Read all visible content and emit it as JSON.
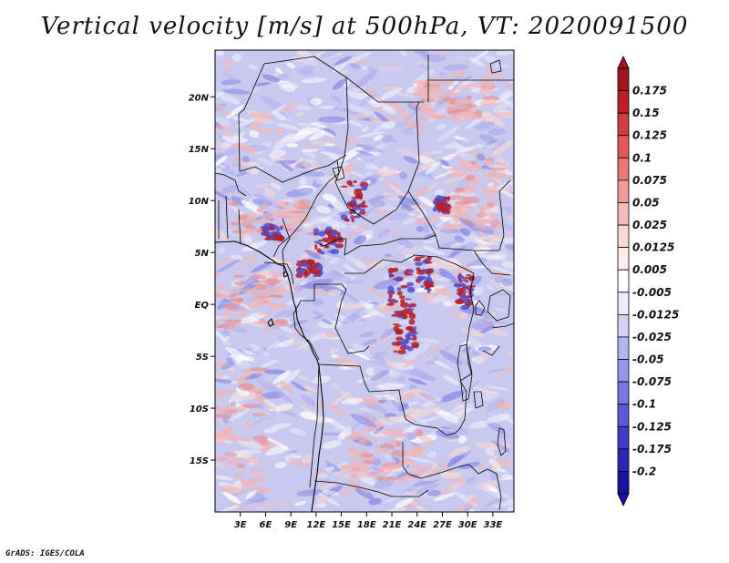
{
  "title": "Vertical velocity [m/s] at 500hPa, VT: 2020091500",
  "footer": "GrADS: IGES/COLA",
  "map": {
    "variable": "Vertical velocity",
    "units": "m/s",
    "level": "500hPa",
    "valid_time": "2020091500",
    "lon_range": [
      0,
      35.5
    ],
    "lat_range": [
      -20,
      24.5
    ],
    "x_ticks": [
      "3E",
      "6E",
      "9E",
      "12E",
      "15E",
      "18E",
      "21E",
      "24E",
      "27E",
      "30E",
      "33E"
    ],
    "x_tick_values": [
      3,
      6,
      9,
      12,
      15,
      18,
      21,
      24,
      27,
      30,
      33
    ],
    "y_ticks": [
      "20N",
      "15N",
      "10N",
      "5N",
      "EQ",
      "5S",
      "10S",
      "15S"
    ],
    "y_tick_values": [
      20,
      15,
      10,
      5,
      0,
      -5,
      -10,
      -15
    ]
  },
  "colorbar": {
    "labels": [
      "0.175",
      "0.15",
      "0.125",
      "0.1",
      "0.075",
      "0.05",
      "0.025",
      "0.0125",
      "0.005",
      "-0.005",
      "-0.0125",
      "-0.025",
      "-0.05",
      "-0.075",
      "-0.1",
      "-0.125",
      "-0.175",
      "-0.2"
    ],
    "colors": [
      "#a0141e",
      "#be1e28",
      "#d23c3c",
      "#e05a5a",
      "#ea7878",
      "#f09a9a",
      "#f6bcbc",
      "#fad8d8",
      "#fdeeee",
      "#ffffff",
      "#ececfb",
      "#d2d2f6",
      "#b4b4f0",
      "#9696ea",
      "#7878e2",
      "#5a5ad8",
      "#3c3cc8",
      "#2828b4",
      "#1414a0"
    ]
  },
  "palette": {
    "background": "#c9c9f0",
    "red": "#b41e28",
    "blue": "#5050d2"
  }
}
